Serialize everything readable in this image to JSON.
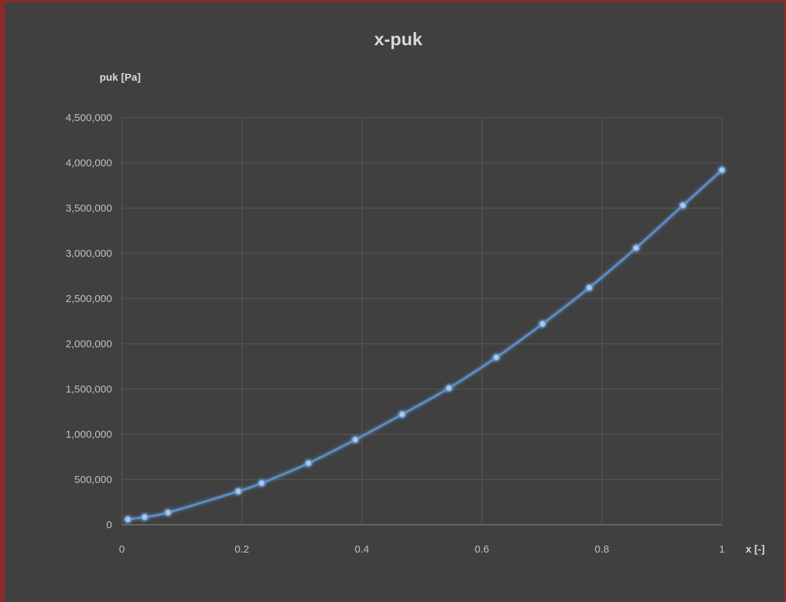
{
  "chart_data": {
    "type": "scatter",
    "title": "x-puk",
    "xlabel": "x [-]",
    "ylabel": "puk [Pa]",
    "xlim": [
      0,
      1
    ],
    "ylim": [
      0,
      4500000
    ],
    "xticks": [
      0,
      0.2,
      0.4,
      0.6,
      0.8,
      1
    ],
    "yticks": [
      0,
      500000,
      1000000,
      1500000,
      2000000,
      2500000,
      3000000,
      3500000,
      4000000,
      4500000
    ],
    "xtick_labels": [
      "0",
      "0.2",
      "0.4",
      "0.6",
      "0.8",
      "1"
    ],
    "ytick_labels": [
      "0",
      "500,000",
      "1,000,000",
      "1,500,000",
      "2,000,000",
      "2,500,000",
      "3,000,000",
      "3,500,000",
      "4,000,000",
      "4,500,000"
    ],
    "grid": true,
    "smooth_line": true,
    "series": [
      {
        "color": "#5b8ec7",
        "x": [
          0.01,
          0.038,
          0.077,
          0.194,
          0.233,
          0.311,
          0.389,
          0.467,
          0.545,
          0.624,
          0.701,
          0.779,
          0.857,
          0.935,
          1.0
        ],
        "y": [
          60000,
          85000,
          135000,
          370000,
          460000,
          680000,
          940000,
          1220000,
          1510000,
          1850000,
          2220000,
          2620000,
          3060000,
          3530000,
          3920000
        ]
      }
    ]
  }
}
